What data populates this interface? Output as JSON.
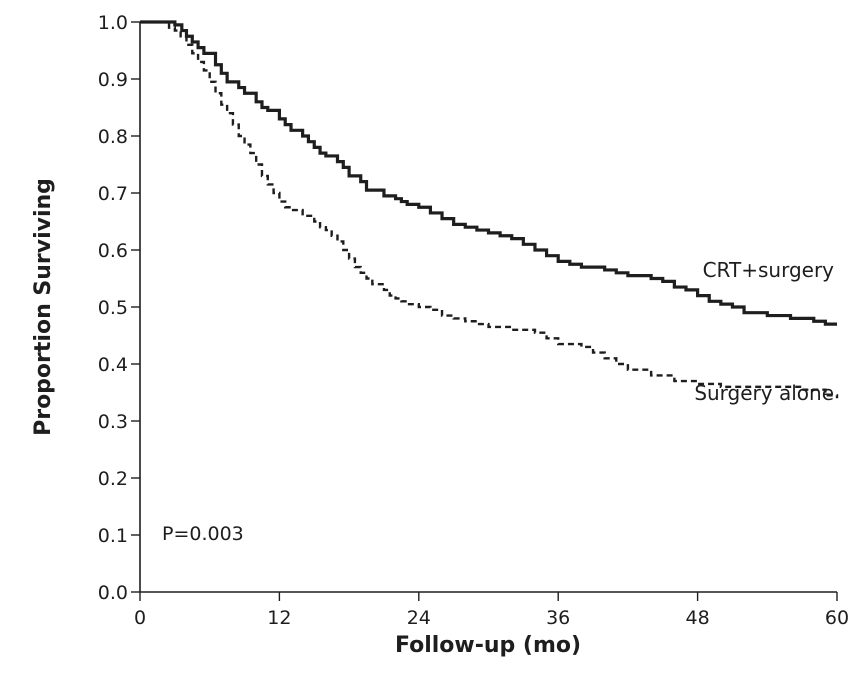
{
  "chart_data": {
    "type": "line",
    "step": true,
    "title": "",
    "xlabel": "Follow-up (mo)",
    "ylabel": "Proportion Surviving",
    "xlim": [
      0,
      60
    ],
    "ylim": [
      0.0,
      1.0
    ],
    "x_ticks": [
      0,
      12,
      24,
      36,
      48,
      60
    ],
    "x_tick_labels": [
      "0",
      "12",
      "24",
      "36",
      "48",
      "60"
    ],
    "y_ticks": [
      0.0,
      0.1,
      0.2,
      0.3,
      0.4,
      0.5,
      0.6,
      0.7,
      0.8,
      0.9,
      1.0
    ],
    "y_tick_labels": [
      "0.0",
      "0.1",
      "0.2",
      "0.3",
      "0.4",
      "0.5",
      "0.6",
      "0.7",
      "0.8",
      "0.9",
      "1.0"
    ],
    "grid": false,
    "annotation": "P=0.003",
    "series": [
      {
        "name": "CRT+surgery",
        "style": "solid",
        "color": "#1e1e1e",
        "x": [
          0,
          3,
          3.6,
          4,
          4.5,
          5,
          5.5,
          6.5,
          7,
          7.5,
          8.5,
          9,
          10,
          10.5,
          11,
          12,
          12.5,
          13,
          14,
          14.5,
          15,
          15.5,
          16,
          17,
          17.5,
          18,
          19,
          19.5,
          21,
          22,
          22.5,
          23,
          24,
          25,
          26,
          27,
          28,
          29,
          30,
          31,
          32,
          33,
          34,
          35,
          36,
          37,
          38,
          40,
          41,
          42,
          44,
          45,
          46,
          47,
          48,
          49,
          50,
          51,
          52,
          54,
          56,
          58,
          59,
          60
        ],
        "y": [
          1.0,
          0.995,
          0.985,
          0.975,
          0.965,
          0.955,
          0.945,
          0.925,
          0.91,
          0.895,
          0.885,
          0.875,
          0.86,
          0.85,
          0.845,
          0.83,
          0.82,
          0.81,
          0.8,
          0.79,
          0.78,
          0.77,
          0.765,
          0.755,
          0.745,
          0.73,
          0.72,
          0.705,
          0.695,
          0.69,
          0.685,
          0.68,
          0.675,
          0.665,
          0.655,
          0.645,
          0.64,
          0.635,
          0.63,
          0.625,
          0.62,
          0.61,
          0.6,
          0.59,
          0.58,
          0.575,
          0.57,
          0.565,
          0.56,
          0.555,
          0.55,
          0.545,
          0.535,
          0.53,
          0.52,
          0.51,
          0.505,
          0.5,
          0.49,
          0.485,
          0.48,
          0.475,
          0.47,
          0.47
        ]
      },
      {
        "name": "Surgery alone",
        "style": "dashed",
        "color": "#1e1e1e",
        "x": [
          0,
          2.5,
          3,
          3.5,
          4,
          4.5,
          5,
          5.5,
          6,
          6.5,
          7,
          7.5,
          8,
          8.5,
          9,
          9.5,
          10,
          10.5,
          11,
          11.5,
          12,
          12.5,
          13,
          14,
          15,
          15.5,
          16,
          16.5,
          17,
          17.5,
          18,
          18.5,
          19,
          19.5,
          20,
          21,
          21.5,
          22,
          22.5,
          23,
          24,
          25,
          26,
          27,
          28,
          29,
          30,
          32,
          34,
          35,
          36,
          38,
          39,
          40,
          41,
          42,
          44,
          46,
          48,
          50,
          52,
          55,
          57,
          59,
          60
        ],
        "y": [
          1.0,
          0.99,
          0.985,
          0.975,
          0.96,
          0.945,
          0.93,
          0.915,
          0.895,
          0.875,
          0.855,
          0.84,
          0.82,
          0.8,
          0.785,
          0.77,
          0.75,
          0.73,
          0.715,
          0.7,
          0.685,
          0.675,
          0.67,
          0.66,
          0.65,
          0.64,
          0.635,
          0.625,
          0.615,
          0.6,
          0.585,
          0.57,
          0.56,
          0.55,
          0.54,
          0.53,
          0.52,
          0.515,
          0.51,
          0.505,
          0.5,
          0.495,
          0.485,
          0.48,
          0.475,
          0.47,
          0.465,
          0.46,
          0.455,
          0.445,
          0.435,
          0.43,
          0.42,
          0.41,
          0.4,
          0.39,
          0.38,
          0.37,
          0.365,
          0.36,
          0.36,
          0.36,
          0.355,
          0.345,
          0.34
        ]
      }
    ]
  }
}
